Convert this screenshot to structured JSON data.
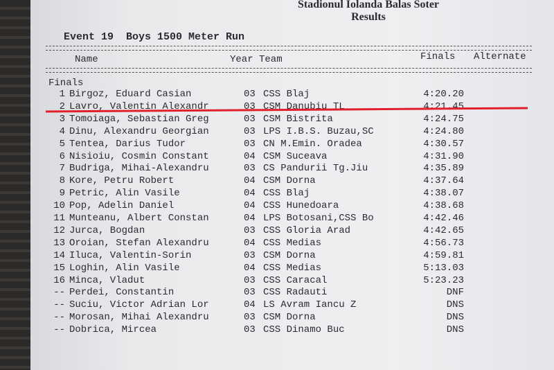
{
  "header": {
    "venue": "Stadionul Iolanda Balas Soter",
    "subtitle": "Results",
    "event": "Event 19  Boys 1500 Meter Run"
  },
  "columns": {
    "name": "Name",
    "year_team": "Year Team",
    "finals": "Finals",
    "alternate": "Alternate"
  },
  "section": "Finals",
  "highlight_color": "#e0202a",
  "highlighted_rank": "2",
  "results": [
    {
      "rank": "1",
      "name": "Birgoz, Eduard Casian",
      "year": "03",
      "team": "CSS Blaj",
      "time": "4:20.20"
    },
    {
      "rank": "2",
      "name": "Lavro, Valentin Alexandr",
      "year": "03",
      "team": "CSM Danubiu TL",
      "time": "4:21.45"
    },
    {
      "rank": "3",
      "name": "Tomoiaga, Sebastian Greg",
      "year": "03",
      "team": "CSM Bistrita",
      "time": "4:24.75"
    },
    {
      "rank": "4",
      "name": "Dinu, Alexandru Georgian",
      "year": "03",
      "team": "LPS I.B.S. Buzau,SC",
      "time": "4:24.80"
    },
    {
      "rank": "5",
      "name": "Tentea, Darius Tudor",
      "year": "03",
      "team": "CN M.Emin. Oradea",
      "time": "4:30.57"
    },
    {
      "rank": "6",
      "name": "Nisioiu, Cosmin Constant",
      "year": "04",
      "team": "CSM Suceava",
      "time": "4:31.90"
    },
    {
      "rank": "7",
      "name": "Budriga, Mihai-Alexandru",
      "year": "03",
      "team": "CS Pandurii Tg.Jiu",
      "time": "4:35.89"
    },
    {
      "rank": "8",
      "name": "Kore, Petru Robert",
      "year": "04",
      "team": "CSM Dorna",
      "time": "4:37.64"
    },
    {
      "rank": "9",
      "name": "Petric, Alin Vasile",
      "year": "04",
      "team": "CSS Blaj",
      "time": "4:38.07"
    },
    {
      "rank": "10",
      "name": "Pop, Adelin Daniel",
      "year": "04",
      "team": "CSS Hunedoara",
      "time": "4:38.68"
    },
    {
      "rank": "11",
      "name": "Munteanu, Albert Constan",
      "year": "04",
      "team": "LPS Botosani,CSS Bo",
      "time": "4:42.46"
    },
    {
      "rank": "12",
      "name": "Jurca, Bogdan",
      "year": "03",
      "team": "CSS Gloria Arad",
      "time": "4:42.65"
    },
    {
      "rank": "13",
      "name": "Oroian, Stefan Alexandru",
      "year": "04",
      "team": "CSS Medias",
      "time": "4:56.73"
    },
    {
      "rank": "14",
      "name": "Iluca, Valentin-Sorin",
      "year": "03",
      "team": "CSM Dorna",
      "time": "4:59.81"
    },
    {
      "rank": "15",
      "name": "Loghin, Alin Vasile",
      "year": "04",
      "team": "CSS Medias",
      "time": "5:13.03"
    },
    {
      "rank": "16",
      "name": "Minca, Vladut",
      "year": "03",
      "team": "CSS Caracal",
      "time": "5:23.23"
    },
    {
      "rank": "--",
      "name": "Perdei, Constantin",
      "year": "03",
      "team": "CSS Radauti",
      "time": "DNF"
    },
    {
      "rank": "--",
      "name": "Suciu, Victor Adrian Lor",
      "year": "04",
      "team": "LS Avram Iancu Z",
      "time": "DNS"
    },
    {
      "rank": "--",
      "name": "Morosan, Mihai Alexandru",
      "year": "03",
      "team": "CSM Dorna",
      "time": "DNS"
    },
    {
      "rank": "--",
      "name": "Dobrica, Mircea",
      "year": "03",
      "team": "CSS Dinamo Buc",
      "time": "DNS"
    }
  ]
}
